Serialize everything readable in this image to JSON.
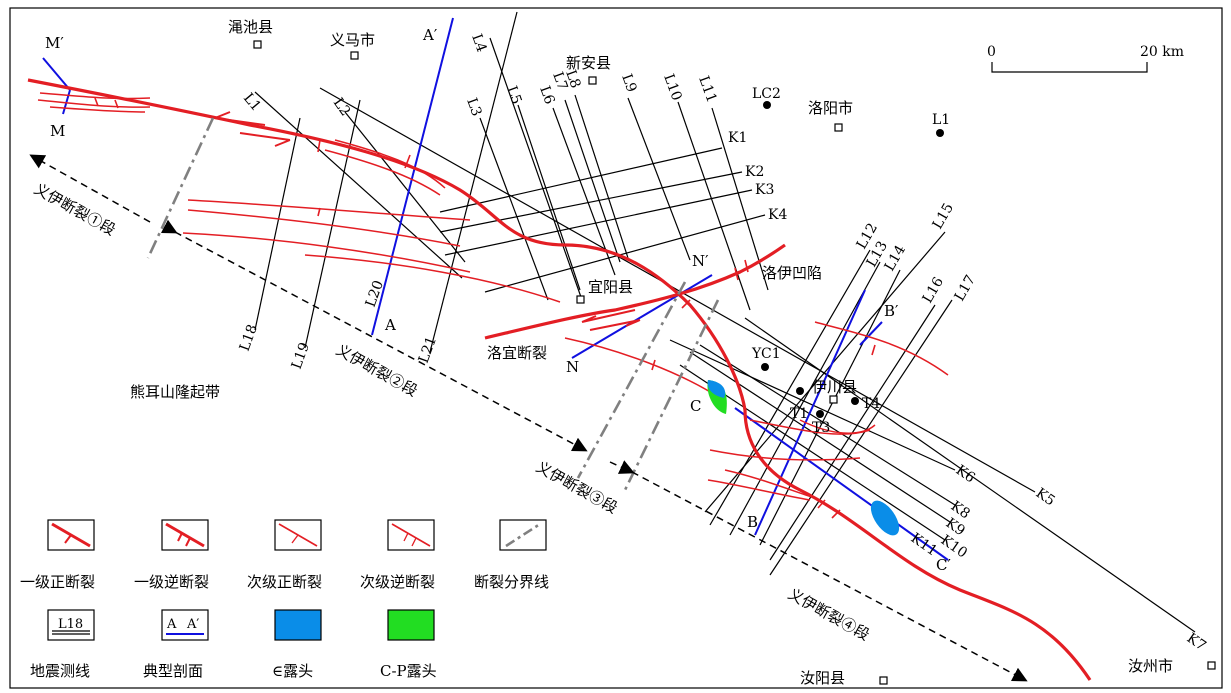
{
  "towns": {
    "mianchi": "渑池县",
    "yima": "义马市",
    "xinan": "新安县",
    "luoyang": "洛阳市",
    "yiyang": "宜阳县",
    "yichuan": "伊川县",
    "ruyang": "汝阳县",
    "ruzhou": "汝州市"
  },
  "wells": {
    "lc2": "LC2",
    "l1": "L1",
    "yc1": "YC1",
    "t1": "T1",
    "t3": "T3",
    "t4": "T4"
  },
  "regions": {
    "xionger": "熊耳山隆起带",
    "luoyi_sag": "洛伊凹陷",
    "luoyi_fault": "洛宜断裂"
  },
  "segments": {
    "s1": "义伊断裂①段",
    "s2": "义伊断裂②段",
    "s3": "义伊断裂③段",
    "s4": "义伊断裂④段"
  },
  "scale": {
    "zero": "0",
    "dist": "20 km"
  },
  "profiles": {
    "m1": "M′",
    "m2": "M",
    "a1": "A′",
    "a2": "A",
    "n1": "N′",
    "n2": "N",
    "b1": "B′",
    "b2": "B",
    "c1": "C",
    "c2": "C′"
  },
  "lines": {
    "L1": "L1",
    "L2": "L2",
    "L3": "L3",
    "L4": "L4",
    "L5": "L5",
    "L6": "L6",
    "L7": "L7",
    "L8": "L8",
    "L9": "L9",
    "L10": "L10",
    "L11": "L11",
    "L12": "L12",
    "L13": "L13",
    "L14": "L14",
    "L15": "L15",
    "L16": "L16",
    "L17": "L17",
    "L18": "L18",
    "L19": "L19",
    "L20": "L20",
    "L21": "L21",
    "K1": "K1",
    "K2": "K2",
    "K3": "K3",
    "K4": "K4",
    "K5": "K5",
    "K6": "K6",
    "K7": "K7",
    "K8": "K8",
    "K9": "K9",
    "K10": "K10",
    "K11": "K11"
  },
  "legend": {
    "primary_normal": "一级正断裂",
    "primary_reverse": "一级逆断裂",
    "secondary_normal": "次级正断裂",
    "secondary_reverse": "次级逆断裂",
    "boundary": "断裂分界线",
    "seismic": "地震测线",
    "profile": "典型剖面",
    "cambrian": "∈露头",
    "cp": "C-P露头",
    "seismic_sample": "L18",
    "profile_sample_a": "A",
    "profile_sample_b": "A′"
  },
  "colors": {
    "fault": "#e31e24",
    "profile": "#1010e0",
    "cambrian": "#0a8de8",
    "cp": "#22dd22"
  }
}
